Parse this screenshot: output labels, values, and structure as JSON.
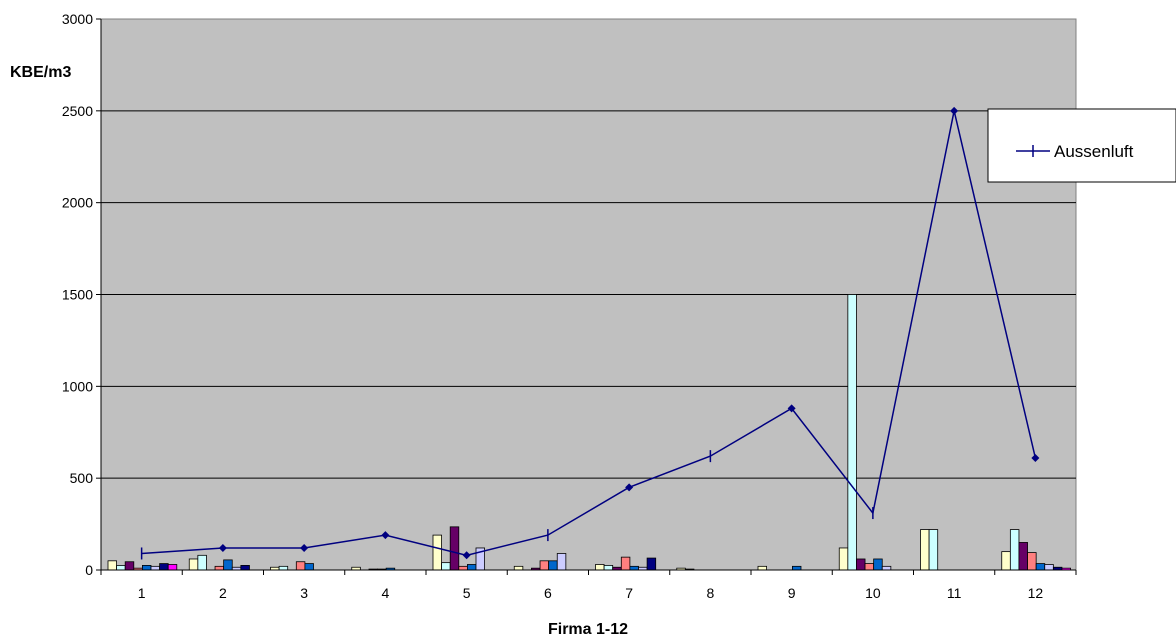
{
  "chart_data": {
    "type": "bar",
    "title": "",
    "xlabel": "Firma 1-12",
    "ylabel": "KBE/m3",
    "ylim": [
      0,
      3000
    ],
    "yticks": [
      0,
      500,
      1000,
      1500,
      2000,
      2500,
      3000
    ],
    "grid": true,
    "legend_position": "right",
    "plot_background": "#c0c0c0",
    "categories": [
      "1",
      "2",
      "3",
      "4",
      "5",
      "6",
      "7",
      "8",
      "9",
      "10",
      "11",
      "12"
    ],
    "bar_colors": [
      "#ffffcc",
      "#ccffff",
      "#660066",
      "#ff8080",
      "#0066cc",
      "#ccccff",
      "#000080",
      "#ff00ff"
    ],
    "bar_groups": [
      [
        50,
        25,
        45,
        10,
        25,
        20,
        35,
        30
      ],
      [
        60,
        80,
        0,
        20,
        55,
        15,
        25,
        0
      ],
      [
        15,
        20,
        0,
        45,
        35,
        0,
        0,
        0
      ],
      [
        15,
        0,
        5,
        5,
        10,
        0,
        0,
        0
      ],
      [
        190,
        40,
        235,
        20,
        30,
        120,
        0,
        0
      ],
      [
        20,
        0,
        10,
        50,
        50,
        90,
        0,
        0
      ],
      [
        30,
        25,
        15,
        70,
        20,
        15,
        65,
        0
      ],
      [
        10,
        5,
        0,
        0,
        0,
        0,
        0,
        0
      ],
      [
        20,
        0,
        0,
        0,
        20,
        0,
        0,
        0
      ],
      [
        120,
        1500,
        60,
        35,
        60,
        20,
        0,
        0
      ],
      [
        220,
        220,
        0,
        0,
        0,
        0,
        0,
        0
      ],
      [
        100,
        220,
        150,
        95,
        35,
        30,
        15,
        10
      ]
    ],
    "series": [
      {
        "name": "Aussenluft",
        "type": "line",
        "color": "#000080",
        "values": [
          90,
          120,
          120,
          190,
          80,
          190,
          450,
          620,
          880,
          310,
          2500,
          610
        ],
        "markers": [
          "tick",
          "diamond",
          "diamond",
          "diamond",
          "diamond",
          "tick",
          "diamond",
          "tick",
          "diamond",
          "tick",
          "diamond",
          "diamond"
        ]
      }
    ]
  }
}
